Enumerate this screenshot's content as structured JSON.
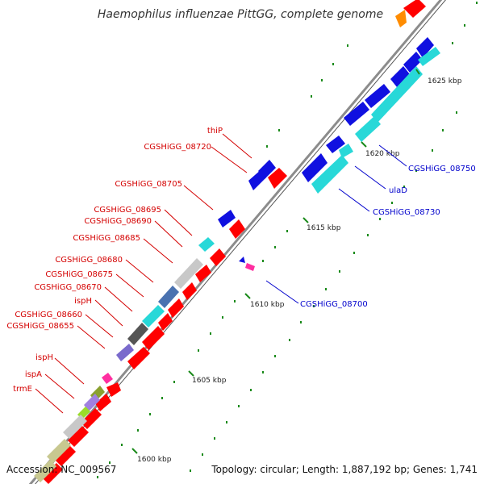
{
  "title": "Haemophilus influenzae PittGG, complete genome",
  "footer": {
    "accession": "Accession: NC_009567",
    "summary": "Topology: circular; Length: 1,887,192 bp; Genes: 1,741"
  },
  "colors": {
    "forward_label": "#d40000",
    "reverse_label": "#0000cc",
    "red_feature": "#ff0000",
    "blue_feature": "#1010e0",
    "cyan_feature": "#28d8d8",
    "backbone": "#8c8c8c",
    "tick": "#1a8a1a"
  },
  "scale_ticks": [
    "1600 kbp",
    "1605 kbp",
    "1610 kbp",
    "1615 kbp",
    "1620 kbp",
    "1625 kbp"
  ],
  "labels_left": [
    "thiP",
    "CGSHiGG_08720",
    "CGSHiGG_08705",
    "CGSHiGG_08695",
    "CGSHiGG_08690",
    "CGSHiGG_08685",
    "CGSHiGG_08680",
    "CGSHiGG_08675",
    "CGSHiGG_08670",
    "ispH",
    "CGSHiGG_08660",
    "CGSHiGG_08655",
    "ispH",
    "ispA",
    "trmE"
  ],
  "labels_right": [
    "CGSHiGG_08750",
    "ulaD",
    "CGSHiGG_08730",
    "CGSHiGG_08700"
  ]
}
